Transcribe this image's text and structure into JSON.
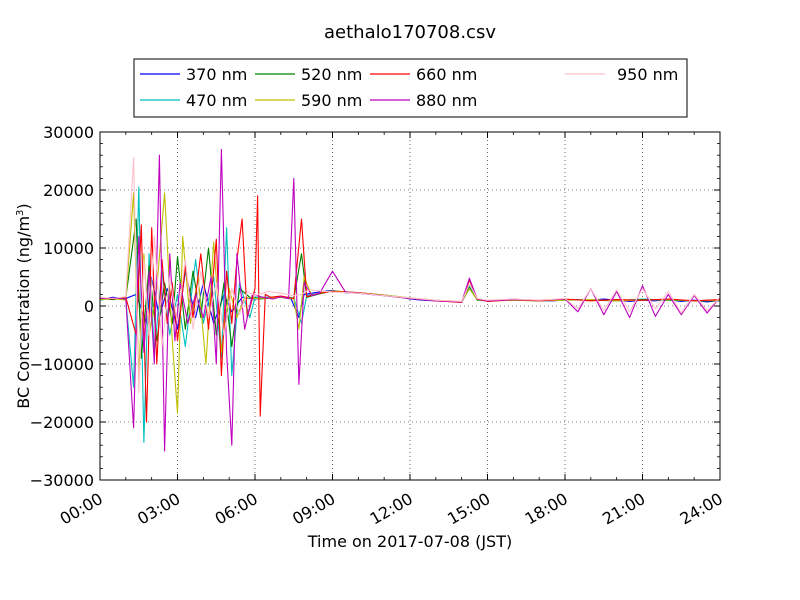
{
  "chart_data": {
    "type": "line",
    "title": "aethalo170708.csv",
    "xlabel": "Time on 2017-07-08 (JST)",
    "ylabel_main": "BC Concentration (ng/m",
    "ylabel_sup": "3",
    "ylabel_close": ")",
    "xlim_hours": [
      0,
      24
    ],
    "ylim": [
      -30000,
      30000
    ],
    "grid": true,
    "legend_position": "top",
    "x_ticks": [
      {
        "hour": 0,
        "label": "00:00"
      },
      {
        "hour": 3,
        "label": "03:00"
      },
      {
        "hour": 6,
        "label": "06:00"
      },
      {
        "hour": 9,
        "label": "09:00"
      },
      {
        "hour": 12,
        "label": "12:00"
      },
      {
        "hour": 15,
        "label": "15:00"
      },
      {
        "hour": 18,
        "label": "18:00"
      },
      {
        "hour": 21,
        "label": "21:00"
      },
      {
        "hour": 24,
        "label": "24:00"
      }
    ],
    "y_ticks": [
      {
        "value": 30000,
        "label": "30000"
      },
      {
        "value": 20000,
        "label": "20000"
      },
      {
        "value": 10000,
        "label": "10000"
      },
      {
        "value": 0,
        "label": "0"
      },
      {
        "value": -10000,
        "label": "−10000"
      },
      {
        "value": -20000,
        "label": "−20000"
      },
      {
        "value": -30000,
        "label": "−30000"
      }
    ],
    "series": [
      {
        "name": "370 nm",
        "color": "#0000ff",
        "hours": [
          0.0,
          0.5,
          1.0,
          1.4,
          1.8,
          2.0,
          2.3,
          2.6,
          3.0,
          3.3,
          3.7,
          4.0,
          4.4,
          4.8,
          5.1,
          5.5,
          6.0,
          6.5,
          7.0,
          7.4,
          7.7,
          7.9,
          8.2,
          8.6,
          9.0,
          9.5,
          10.0,
          10.5,
          11.0,
          11.5,
          12.0,
          12.5,
          13.0,
          13.5,
          14.0,
          14.3,
          14.6,
          15.0,
          15.5,
          16.0,
          16.5,
          17.0,
          17.5,
          18.0,
          18.5,
          19.0,
          19.5,
          20.0,
          20.5,
          21.0,
          21.5,
          22.0,
          22.5,
          23.0,
          23.5,
          24.0
        ],
        "values": [
          1200,
          1500,
          1300,
          2000,
          -3000,
          5000,
          -2000,
          3000,
          -4000,
          6000,
          -2000,
          4000,
          -3000,
          2000,
          -1000,
          1500,
          1200,
          1500,
          1500,
          1200,
          -2000,
          2000,
          2200,
          2500,
          2700,
          2300,
          2200,
          2000,
          1800,
          1600,
          1200,
          1000,
          900,
          800,
          700,
          3000,
          1200,
          800,
          1000,
          1200,
          1000,
          900,
          900,
          1000,
          1100,
          1000,
          1200,
          1000,
          800,
          1000,
          900,
          1100,
          800,
          1000,
          700,
          1000
        ]
      },
      {
        "name": "470 nm",
        "color": "#00bfbf",
        "hours": [
          0.0,
          0.5,
          1.0,
          1.3,
          1.5,
          1.7,
          1.9,
          2.1,
          2.4,
          2.7,
          3.0,
          3.3,
          3.7,
          4.0,
          4.4,
          4.7,
          4.9,
          5.1,
          5.4,
          5.8,
          6.0,
          6.5,
          7.0,
          7.5,
          7.8,
          8.0,
          8.5,
          9.0,
          9.5,
          10.0,
          11.0,
          12.0,
          13.0,
          14.0,
          14.3,
          14.6,
          15.0,
          16.0,
          17.0,
          18.0,
          19.0,
          20.0,
          21.0,
          22.0,
          23.0,
          24.0
        ],
        "values": [
          1000,
          1400,
          1200,
          -14000,
          20500,
          -23500,
          9000,
          -8000,
          6000,
          -5000,
          2000,
          -7000,
          8000,
          -3000,
          5000,
          -9000,
          13500,
          -12000,
          4000,
          -2000,
          1500,
          1500,
          1600,
          1400,
          -3000,
          1800,
          2200,
          2500,
          2400,
          2200,
          1800,
          1300,
          900,
          700,
          3500,
          1100,
          900,
          1100,
          900,
          1000,
          1100,
          900,
          1200,
          1000,
          900,
          1000
        ]
      },
      {
        "name": "520 nm",
        "color": "#008000",
        "hours": [
          0.0,
          0.5,
          1.0,
          1.4,
          1.6,
          1.9,
          2.2,
          2.5,
          2.8,
          3.0,
          3.3,
          3.6,
          3.9,
          4.2,
          4.5,
          4.8,
          5.1,
          5.4,
          5.8,
          6.2,
          6.6,
          7.0,
          7.5,
          7.8,
          8.0,
          8.5,
          9.0,
          10.0,
          11.0,
          12.0,
          13.0,
          14.0,
          14.3,
          14.6,
          15.0,
          16.0,
          17.0,
          18.0,
          19.0,
          20.0,
          21.0,
          22.0,
          23.0,
          24.0
        ],
        "values": [
          1300,
          1100,
          1400,
          15000,
          -9000,
          7000,
          -6000,
          4000,
          -3000,
          8500,
          -4000,
          6000,
          -2000,
          10000,
          -5000,
          4000,
          -7000,
          3000,
          1500,
          1200,
          1400,
          1600,
          1300,
          9000,
          1500,
          2100,
          2600,
          2300,
          1900,
          1400,
          900,
          700,
          3200,
          1000,
          900,
          1000,
          900,
          1100,
          1000,
          900,
          1100,
          1000,
          900,
          900
        ]
      },
      {
        "name": "590 nm",
        "color": "#bfbf00",
        "hours": [
          0.0,
          0.5,
          1.0,
          1.3,
          1.5,
          1.7,
          1.9,
          2.2,
          2.5,
          2.8,
          3.0,
          3.2,
          3.5,
          3.8,
          4.1,
          4.4,
          4.7,
          5.0,
          5.3,
          5.6,
          6.0,
          6.5,
          7.0,
          7.5,
          7.7,
          7.9,
          8.2,
          8.6,
          9.0,
          10.0,
          11.0,
          12.0,
          13.0,
          14.0,
          14.3,
          14.6,
          15.0,
          16.0,
          17.0,
          18.0,
          19.0,
          20.0,
          21.0,
          22.0,
          23.0,
          24.0
        ],
        "values": [
          1100,
          1300,
          1000,
          19500,
          -12000,
          9000,
          -5000,
          3000,
          19500,
          -6000,
          -18500,
          12000,
          -3000,
          5000,
          -10000,
          11000,
          -8000,
          3000,
          -2000,
          1500,
          1300,
          1400,
          1500,
          1200,
          -4000,
          5000,
          1800,
          2400,
          2600,
          2300,
          1900,
          1400,
          1000,
          800,
          3000,
          1100,
          900,
          1000,
          900,
          1000,
          1100,
          900,
          1000,
          1100,
          900,
          1000
        ]
      },
      {
        "name": "660 nm",
        "color": "#ff0000",
        "hours": [
          0.0,
          0.5,
          1.0,
          1.4,
          1.6,
          1.8,
          2.0,
          2.2,
          2.4,
          2.6,
          2.8,
          3.0,
          3.3,
          3.6,
          3.9,
          4.2,
          4.5,
          4.7,
          4.9,
          5.1,
          5.3,
          5.5,
          5.7,
          6.0,
          6.1,
          6.2,
          6.4,
          6.6,
          7.0,
          7.5,
          7.8,
          8.0,
          8.5,
          9.0,
          10.0,
          11.0,
          12.0,
          13.0,
          14.0,
          14.3,
          14.6,
          15.0,
          16.0,
          17.0,
          18.0,
          19.0,
          20.0,
          21.0,
          22.0,
          23.0,
          24.0
        ],
        "values": [
          1400,
          1200,
          1500,
          -5000,
          14000,
          -20000,
          13500,
          -10000,
          8000,
          -3000,
          4000,
          -6000,
          7000,
          -2000,
          9000,
          -4000,
          11500,
          -12000,
          6000,
          -3000,
          8000,
          15000,
          -2000,
          3000,
          19000,
          -19000,
          2000,
          1500,
          1700,
          1300,
          15000,
          1600,
          2200,
          2500,
          2300,
          1800,
          1300,
          900,
          600,
          4500,
          1200,
          800,
          1100,
          900,
          1200,
          900,
          1100,
          1000,
          1200,
          900,
          1100
        ]
      },
      {
        "name": "880 nm",
        "color": "#bf00bf",
        "hours": [
          0.0,
          0.5,
          1.0,
          1.3,
          1.5,
          1.7,
          1.9,
          2.1,
          2.3,
          2.5,
          2.7,
          2.9,
          3.1,
          3.4,
          3.7,
          4.0,
          4.3,
          4.5,
          4.7,
          4.9,
          5.1,
          5.3,
          5.6,
          5.9,
          6.3,
          6.7,
          7.0,
          7.3,
          7.5,
          7.7,
          7.9,
          8.2,
          8.5,
          9.0,
          9.5,
          10.0,
          11.0,
          12.0,
          13.0,
          14.0,
          14.3,
          14.6,
          15.0,
          16.0,
          17.0,
          18.0,
          18.5,
          19.0,
          19.5,
          20.0,
          20.5,
          21.0,
          21.5,
          22.0,
          22.5,
          23.0,
          23.5,
          24.0
        ],
        "values": [
          1300,
          1400,
          1200,
          -21000,
          12000,
          -8000,
          6000,
          -10000,
          26000,
          -25000,
          9000,
          -6000,
          4000,
          -3000,
          2000,
          -2000,
          5000,
          -10000,
          27000,
          -8000,
          -24000,
          9000,
          -4000,
          2000,
          1500,
          1200,
          1600,
          1300,
          22000,
          -13500,
          4000,
          1800,
          2200,
          6000,
          2400,
          2200,
          1800,
          1300,
          900,
          700,
          4800,
          1200,
          900,
          1100,
          1000,
          1200,
          -1000,
          3000,
          -1500,
          2500,
          -2000,
          3500,
          -1800,
          2000,
          -1500,
          1800,
          -1200,
          1500
        ]
      },
      {
        "name": "950 nm",
        "color": "#ffc0cb",
        "hours": [
          0.0,
          0.5,
          1.0,
          1.3,
          1.5,
          1.7,
          1.9,
          2.1,
          2.4,
          2.7,
          3.0,
          3.3,
          3.6,
          3.9,
          4.2,
          4.5,
          4.8,
          5.1,
          5.4,
          5.7,
          6.0,
          6.5,
          7.0,
          7.5,
          7.8,
          8.1,
          8.5,
          9.0,
          10.0,
          11.0,
          12.0,
          13.0,
          14.0,
          14.3,
          14.6,
          15.0,
          16.0,
          17.0,
          18.0,
          18.5,
          19.0,
          19.5,
          20.0,
          20.5,
          21.0,
          21.5,
          22.0,
          22.5,
          23.0,
          23.5,
          24.0
        ],
        "values": [
          1500,
          1300,
          1600,
          25500,
          -15000,
          8000,
          -5000,
          12000,
          -7000,
          5000,
          -3000,
          8000,
          -4000,
          6000,
          -2000,
          4000,
          -5000,
          3000,
          -1500,
          2500,
          1800,
          2500,
          2200,
          1800,
          2000,
          2800,
          2600,
          2400,
          2200,
          1800,
          1400,
          1000,
          800,
          3800,
          1300,
          1000,
          1200,
          1000,
          1300,
          -500,
          3000,
          -800,
          2800,
          -1000,
          3000,
          -500,
          2500,
          -1200,
          2000,
          -800,
          1500
        ]
      }
    ]
  }
}
